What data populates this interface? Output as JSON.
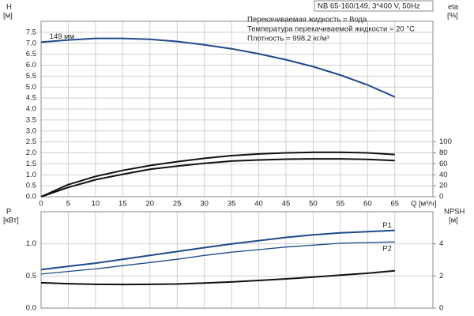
{
  "chart_data": [
    {
      "type": "line",
      "title": "NB 65-160/149, 3*400 V, 50Hz",
      "annotations": [
        "Перекачиваемая жидкость = Вода",
        "Температура перекачиваемой жидкости = 20 °C",
        "Плотность = 998.2 кг/м³"
      ],
      "xlabel": "Q [м³/ч]",
      "ylabel": "H",
      "ylabel_unit": "[м]",
      "y2label": "eta",
      "y2label_unit": "[%]",
      "x": [
        0,
        5,
        10,
        15,
        20,
        25,
        30,
        35,
        40,
        45,
        50,
        55,
        60,
        65
      ],
      "xlim": [
        0,
        72
      ],
      "xticks": [
        0,
        5,
        10,
        15,
        20,
        25,
        30,
        35,
        40,
        45,
        50,
        55,
        60,
        65
      ],
      "ylim": [
        0,
        8
      ],
      "yticks": [
        {
          "value": 0,
          "label": "0.0"
        },
        0.5,
        {
          "value": 1,
          "label": "1.0"
        },
        1.5,
        {
          "value": 2,
          "label": "2.0"
        },
        2.5,
        {
          "value": 3,
          "label": "3.0"
        },
        3.5,
        {
          "value": 4,
          "label": "4.0"
        },
        4.5,
        {
          "value": 5,
          "label": "5.0"
        },
        5.5,
        {
          "value": 6,
          "label": "6.0"
        },
        6.5,
        {
          "value": 7,
          "label": "7.0"
        },
        7.5
      ],
      "y2lim": [
        0,
        320
      ],
      "y2ticks": [
        0,
        20,
        40,
        60,
        80,
        100
      ],
      "grid": true,
      "series": [
        {
          "name": "149 мм",
          "color": "#1d4a8a",
          "values": [
            7.05,
            7.15,
            7.22,
            7.22,
            7.18,
            7.08,
            6.93,
            6.75,
            6.52,
            6.25,
            5.93,
            5.55,
            5.1,
            4.55
          ]
        },
        {
          "color": "#111111",
          "axis": "y2",
          "values": [
            0,
            22,
            37,
            48,
            57,
            64,
            70,
            75,
            78,
            80,
            81,
            81,
            80,
            77
          ]
        },
        {
          "color": "#111111",
          "axis": "y2",
          "values": [
            0,
            17,
            31,
            41,
            50,
            56,
            61,
            65,
            67,
            68.5,
            69,
            69,
            68,
            66
          ]
        }
      ]
    },
    {
      "type": "line",
      "ylabel": "P",
      "ylabel_unit": "[кВт]",
      "y2label": "NPSH",
      "y2label_unit": "[м]",
      "x": [
        0,
        5,
        10,
        15,
        20,
        25,
        30,
        35,
        40,
        45,
        50,
        55,
        60,
        65
      ],
      "xlim": [
        0,
        72
      ],
      "xticks": [
        0,
        5,
        10,
        15,
        20,
        25,
        30,
        35,
        40,
        45,
        50,
        55,
        60,
        65
      ],
      "ylim": [
        0,
        1.5
      ],
      "yticks": [
        {
          "value": 0,
          "label": "0.0"
        },
        0.5,
        {
          "value": 1,
          "label": "1.0"
        }
      ],
      "y2lim": [
        0,
        6
      ],
      "y2ticks": [
        0,
        2,
        4
      ],
      "grid": true,
      "series": [
        {
          "name": "P1",
          "color": "#1d4a8a",
          "values": [
            0.6,
            0.65,
            0.7,
            0.76,
            0.82,
            0.88,
            0.94,
            1.0,
            1.05,
            1.1,
            1.14,
            1.17,
            1.19,
            1.21
          ]
        },
        {
          "name": "P2",
          "color": "#1d4a8a",
          "values": [
            0.53,
            0.57,
            0.61,
            0.66,
            0.71,
            0.76,
            0.82,
            0.87,
            0.91,
            0.95,
            0.98,
            1.01,
            1.02,
            1.03
          ]
        },
        {
          "color": "#111111",
          "axis": "y2",
          "values": [
            1.58,
            1.52,
            1.48,
            1.47,
            1.48,
            1.5,
            1.56,
            1.63,
            1.72,
            1.82,
            1.93,
            2.05,
            2.17,
            2.32
          ]
        }
      ]
    }
  ]
}
